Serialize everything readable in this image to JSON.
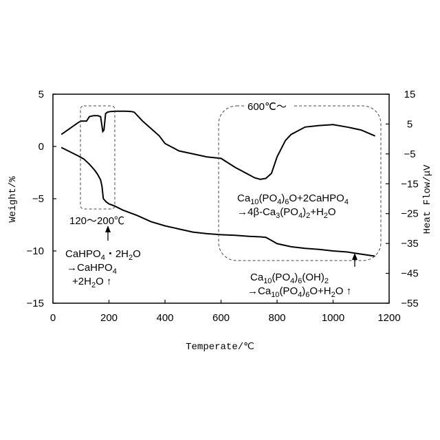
{
  "chart_data": {
    "type": "line",
    "title": "",
    "xlabel": "Temperate/℃",
    "ylabel_left": "Weight/%",
    "ylabel_right": "Heat Flow/μV",
    "xlim": [
      0,
      1200
    ],
    "ylim_left": [
      -15,
      5
    ],
    "ylim_right": [
      -55,
      15
    ],
    "x_ticks": [
      0,
      200,
      400,
      600,
      800,
      1000,
      1200
    ],
    "y_left_ticks": [
      5,
      0,
      -5,
      -10,
      -15
    ],
    "y_left_tick_labels": [
      "5",
      "0",
      "−5",
      "−10",
      "−15"
    ],
    "y_right_ticks": [
      15,
      5,
      -5,
      -15,
      -25,
      -35,
      -45,
      -55
    ],
    "y_right_tick_labels": [
      "15",
      "5",
      "−5",
      "−15",
      "−25",
      "−35",
      "−45",
      "−55"
    ],
    "grid": false,
    "series": [
      {
        "axis": "left",
        "x": [
          30,
          60,
          90,
          110,
          130,
          150,
          160,
          170,
          175,
          180,
          190,
          200,
          220,
          250,
          300,
          350,
          400,
          450,
          500,
          550,
          600,
          650,
          700,
          740,
          760,
          780,
          800,
          850,
          900,
          950,
          1000,
          1050,
          1100,
          1150
        ],
        "y": [
          -0.1,
          -0.5,
          -0.9,
          -1.2,
          -1.7,
          -2.3,
          -2.7,
          -3.2,
          -3.8,
          -5.0,
          -5.3,
          -5.5,
          -5.7,
          -6.1,
          -6.6,
          -7.2,
          -7.6,
          -7.9,
          -8.2,
          -8.35,
          -8.45,
          -8.5,
          -8.6,
          -8.65,
          -8.7,
          -9.0,
          -9.3,
          -9.6,
          -9.75,
          -9.85,
          -10.0,
          -10.1,
          -10.3,
          -10.5
        ]
      },
      {
        "axis": "right",
        "x": [
          30,
          60,
          90,
          100,
          110,
          120,
          130,
          145,
          160,
          170,
          178,
          182,
          188,
          195,
          205,
          230,
          260,
          280,
          290,
          320,
          350,
          380,
          400,
          450,
          500,
          550,
          600,
          650,
          680,
          700,
          720,
          740,
          760,
          780,
          800,
          830,
          850,
          900,
          950,
          1000,
          1050,
          1100,
          1150
        ],
        "y": [
          1.5,
          3.5,
          5.5,
          6.0,
          6.0,
          6.0,
          7.5,
          7.8,
          7.8,
          7.5,
          2.5,
          3.0,
          8.5,
          9.0,
          9.2,
          9.3,
          9.3,
          9.2,
          9.0,
          6.0,
          3.5,
          1.0,
          -1.5,
          -4.0,
          -5.0,
          -6.0,
          -6.5,
          -9.5,
          -11.0,
          -12.0,
          -13.0,
          -13.5,
          -13.2,
          -11.5,
          -6.0,
          -0.5,
          1.5,
          4.0,
          4.5,
          4.8,
          4.0,
          3.0,
          1.0
        ]
      }
    ],
    "annotations": {
      "range_low": "120～200℃",
      "range_high": "600℃～",
      "low_line1": "CaHPO",
      "low_line1_sub": "4",
      "low_line1_rest": "・2H",
      "low_line1_sub2": "2",
      "low_line1_end": "O",
      "low_line2": "→CaHPO",
      "low_line2_sub": "4",
      "low_line3": "+2H",
      "low_line3_sub": "2",
      "low_line3_end": "O ↑",
      "react1_a": "Ca",
      "react1_s1": "10",
      "react1_b": "(PO",
      "react1_s2": "4",
      "react1_c": ")",
      "react1_s3": "6",
      "react1_d": "O+2CaHPO",
      "react1_s4": "4",
      "react2_a": "→4β-Ca",
      "react2_s1": "3",
      "react2_b": "(PO",
      "react2_s2": "4",
      "react2_c": ")",
      "react2_s3": "2",
      "react2_d": "+H",
      "react2_s4": "2",
      "react2_e": "O",
      "react3_a": "Ca",
      "react3_s1": "10",
      "react3_b": "(PO",
      "react3_s2": "4",
      "react3_c": ")",
      "react3_s3": "6",
      "react3_d": "(OH)",
      "react3_s4": "2",
      "react4_a": "→Ca",
      "react4_s1": "10",
      "react4_b": "(PO",
      "react4_s2": "4",
      "react4_c": ")",
      "react4_s3": "6",
      "react4_d": "O+H",
      "react4_s4": "2",
      "react4_e": "O ↑"
    }
  }
}
